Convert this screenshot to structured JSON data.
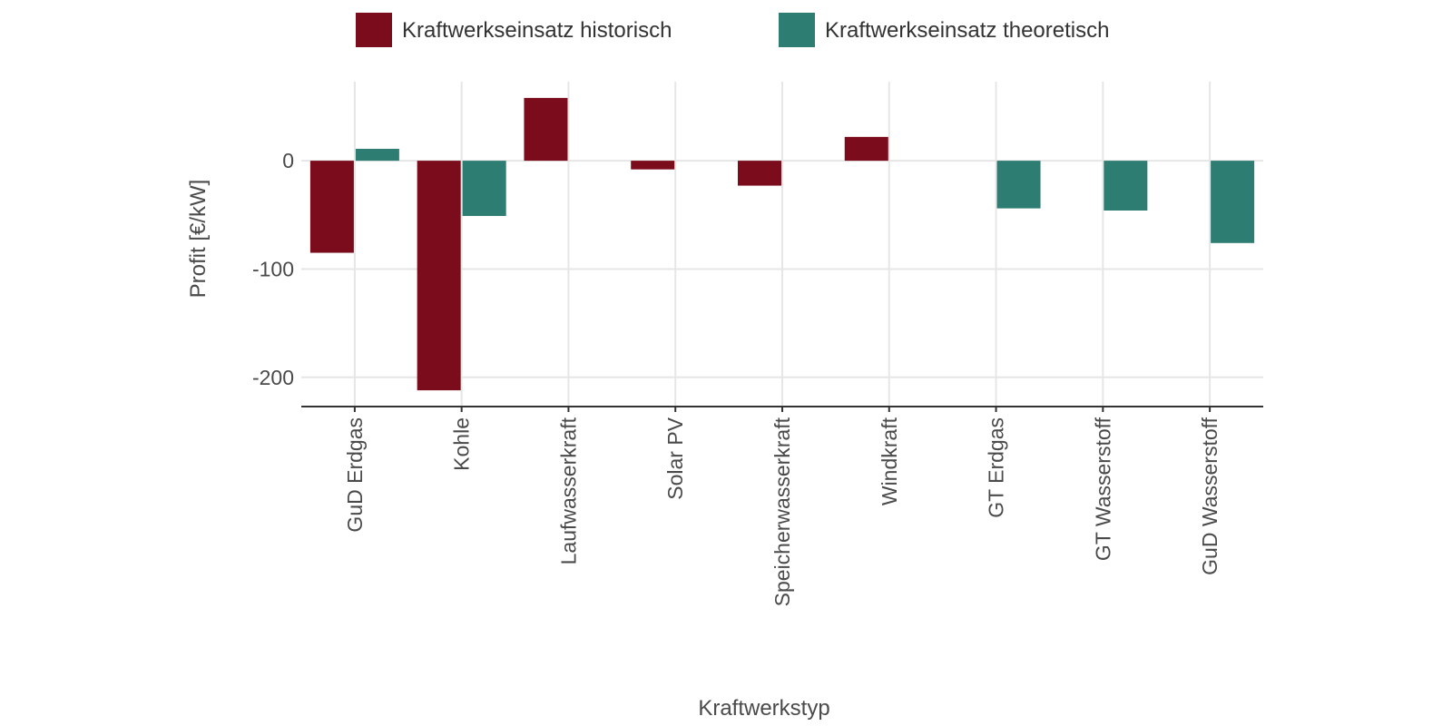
{
  "chart_data": {
    "type": "bar",
    "xlabel": "Kraftwerkstyp",
    "ylabel": "Profit [€/kW]",
    "categories": [
      "GuD Erdgas",
      "Kohle",
      "Laufwasserkraft",
      "Solar PV",
      "Speicherwasserkraft",
      "Windkraft",
      "GT Erdgas",
      "GT Wasserstoff",
      "GuD Wasserstoff"
    ],
    "series": [
      {
        "name": "Kraftwerkseinsatz historisch",
        "color": "#7a0c1c",
        "values": [
          -85,
          -212,
          58,
          -8,
          -23,
          22,
          null,
          null,
          null
        ]
      },
      {
        "name": "Kraftwerkseinsatz theoretisch",
        "color": "#2e7d72",
        "values": [
          11,
          -51,
          null,
          null,
          null,
          null,
          -44,
          -46,
          -76
        ]
      }
    ],
    "yticks": [
      0,
      -100,
      -200
    ],
    "ylim": [
      -227,
      73
    ],
    "grid": true,
    "legend_position": "top"
  }
}
